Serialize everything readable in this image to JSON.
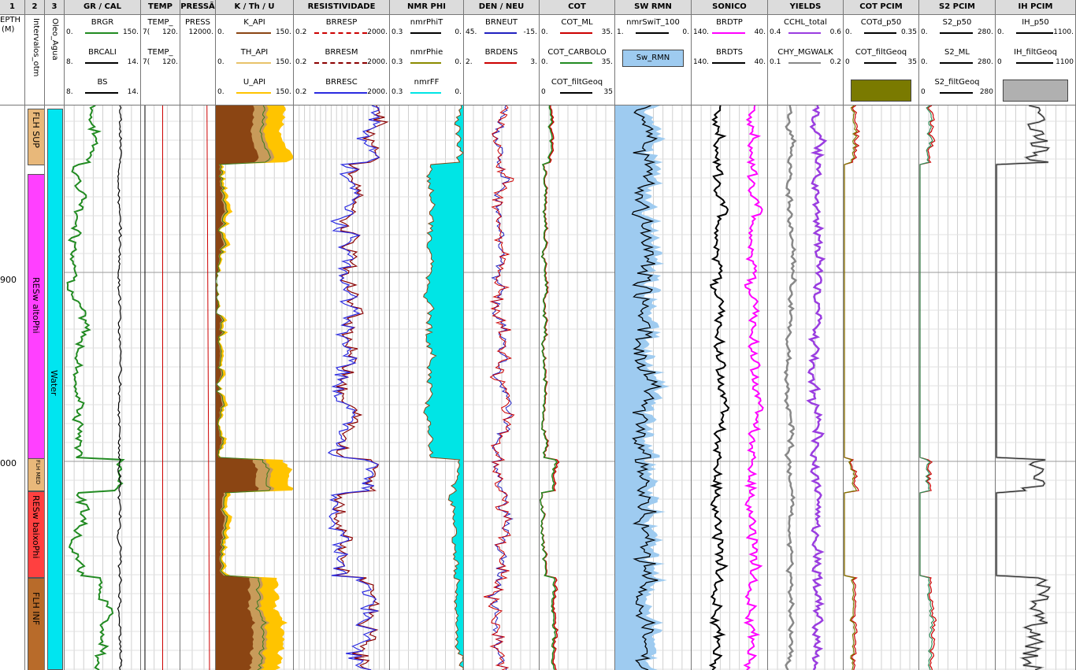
{
  "tracks": [
    {
      "id": "t1",
      "header": "1",
      "curves": []
    },
    {
      "id": "t2",
      "header": "2",
      "curves": []
    },
    {
      "id": "t3",
      "header": "3",
      "curves": []
    },
    {
      "id": "gr",
      "header": "GR / CAL",
      "curves": [
        {
          "name": "BRGR",
          "lo": "0.",
          "hi": "150.",
          "color": "#228b22"
        },
        {
          "name": "BRCALI",
          "lo": "8.",
          "hi": "14.",
          "color": "#000000"
        },
        {
          "name": "BS",
          "lo": "8.",
          "hi": "14.",
          "color": "#000000"
        }
      ]
    },
    {
      "id": "temp",
      "header": "TEMP",
      "curves": [
        {
          "name": "TEMP_",
          "lo": "7(",
          "hi": "120."
        },
        {
          "name": "TEMP_",
          "lo": "7(",
          "hi": "120."
        }
      ]
    },
    {
      "id": "press",
      "header": "PRESSÃ",
      "curves": [
        {
          "name": "PRESS",
          "lo": "",
          "hi": "12000."
        }
      ]
    },
    {
      "id": "kthu",
      "header": "K / Th / U",
      "curves": [
        {
          "name": "K_API",
          "lo": "0.",
          "hi": "150.",
          "color": "#8b4513"
        },
        {
          "name": "TH_API",
          "lo": "0.",
          "hi": "150.",
          "color": "#e8c36a"
        },
        {
          "name": "U_API",
          "lo": "0.",
          "hi": "150.",
          "color": "#ffc400"
        }
      ]
    },
    {
      "id": "res",
      "header": "RESISTIVIDADE",
      "curves": [
        {
          "name": "BRRESP",
          "lo": "0.2",
          "hi": "2000.",
          "color": "#cc0000"
        },
        {
          "name": "BRRESM",
          "lo": "0.2",
          "hi": "2000.",
          "color": "#8b0000"
        },
        {
          "name": "BRRESC",
          "lo": "0.2",
          "hi": "2000.",
          "color": "#2a2ae0"
        }
      ]
    },
    {
      "id": "nmr",
      "header": "NMR PHI",
      "curves": [
        {
          "name": "nmrPhiT",
          "lo": "0.3",
          "hi": "0.",
          "color": "#000000"
        },
        {
          "name": "nmrPhie",
          "lo": "0.3",
          "hi": "0.",
          "color": "#8b8b00"
        },
        {
          "name": "nmrFF",
          "lo": "0.3",
          "hi": "0.",
          "color": "#00e5e5"
        }
      ]
    },
    {
      "id": "den",
      "header": "DEN / NEU",
      "curves": [
        {
          "name": "BRNEUT",
          "lo": "45.",
          "hi": "-15.",
          "color": "#2020c0"
        },
        {
          "name": "BRDENS",
          "lo": "2.",
          "hi": "3.",
          "color": "#cc0000"
        }
      ]
    },
    {
      "id": "cot",
      "header": "COT",
      "curves": [
        {
          "name": "COT_ML",
          "lo": "0.",
          "hi": "35.",
          "color": "#cc0000"
        },
        {
          "name": "COT_CARBOLO",
          "lo": "0.",
          "hi": "35.",
          "color": "#228b22"
        },
        {
          "name": "COT_filtGeoq",
          "lo": "0",
          "hi": "35",
          "color": "#000000"
        }
      ]
    },
    {
      "id": "sw",
      "header": "SW RMN",
      "curves": [
        {
          "name": "nmrSwiT_100",
          "lo": "1.",
          "hi": "0.",
          "color": "#000000"
        }
      ],
      "fill_label": "Sw_RMN"
    },
    {
      "id": "son",
      "header": "SONICO",
      "curves": [
        {
          "name": "BRDTP",
          "lo": "140.",
          "hi": "40.",
          "color": "#ff00ff"
        },
        {
          "name": "BRDTS",
          "lo": "140.",
          "hi": "40.",
          "color": "#000000"
        }
      ]
    },
    {
      "id": "yld",
      "header": "YIELDS",
      "curves": [
        {
          "name": "CCHL_total",
          "lo": "0.4",
          "hi": "0.6",
          "color": "#9a3de0"
        },
        {
          "name": "CHY_MGWALK",
          "lo": "0.1",
          "hi": "0.2",
          "color": "#888888"
        }
      ]
    },
    {
      "id": "cotp",
      "header": "COT PCIM",
      "curves": [
        {
          "name": "COTd_p50",
          "lo": "0.",
          "hi": "0.35",
          "color": "#000000"
        },
        {
          "name": "COT_filtGeoq",
          "lo": "0",
          "hi": "35",
          "color": "#000000"
        }
      ]
    },
    {
      "id": "s2",
      "header": "S2 PCIM",
      "curves": [
        {
          "name": "S2_p50",
          "lo": "0.",
          "hi": "280.",
          "color": "#000000"
        },
        {
          "name": "S2_ML",
          "lo": "0.",
          "hi": "280.",
          "color": "#000000"
        },
        {
          "name": "S2_filtGeoq",
          "lo": "0",
          "hi": "280",
          "color": "#000000"
        }
      ]
    },
    {
      "id": "ih",
      "header": "IH PCIM",
      "curves": [
        {
          "name": "IH_p50",
          "lo": "0.",
          "hi": "1100.",
          "color": "#000000"
        },
        {
          "name": "IH_filtGeoq",
          "lo": "0",
          "hi": "1100",
          "color": "#000000"
        }
      ]
    }
  ],
  "depth": {
    "label1": "EPTH",
    "label2": "(M)",
    "ticks": [
      "900",
      "000"
    ]
  },
  "intervals_label": "Intervalos_otm",
  "fluid_label": "Oleo_Agua",
  "zones": [
    "FLH SUP",
    "RESw altoPhi",
    "FLH MED",
    "RESw baixoPhi",
    "FLH INF"
  ],
  "fluid_zone": "Water",
  "colors": {
    "zone_sup": "#e8b87a",
    "zone_alto": "#ff40ff",
    "zone_med": "#e8b87a",
    "zone_baixo": "#ff4040",
    "zone_inf": "#b86b2a",
    "fluid": "#00e5f0",
    "cot_fill": "#7a7a00",
    "ih_fill": "#b0b0b0",
    "sw_fill": "#9ecbf0"
  }
}
